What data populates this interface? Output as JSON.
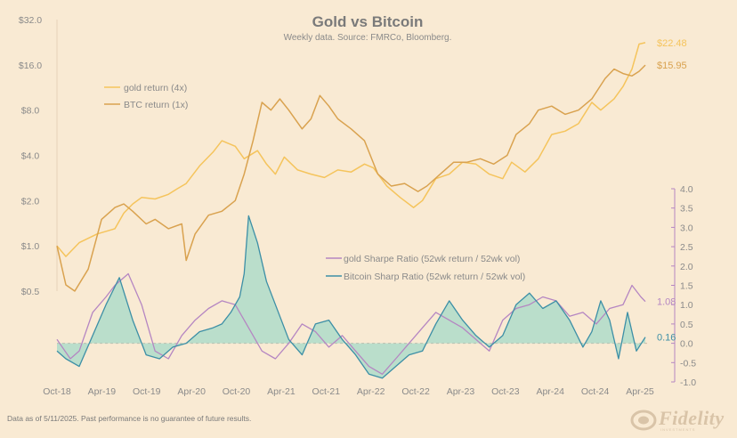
{
  "chart_data": {
    "type": "line",
    "title": "Gold vs Bitcoin",
    "subtitle": "Weekly data.  Source: FMRCo, Bloomberg.",
    "x_labels": [
      "Oct-18",
      "Apr-19",
      "Oct-19",
      "Apr-20",
      "Oct-20",
      "Apr-21",
      "Oct-21",
      "Apr-22",
      "Oct-22",
      "Apr-23",
      "Oct-23",
      "Apr-24",
      "Oct-24",
      "Apr-25"
    ],
    "x_range": [
      2018.75,
      2025.4
    ],
    "left_axis": {
      "scale": "log2",
      "ticks": [
        "$0.5",
        "$1.0",
        "$2.0",
        "$4.0",
        "$8.0",
        "$16.0",
        "$32.0"
      ],
      "tick_values": [
        0.5,
        1,
        2,
        4,
        8,
        16,
        32
      ],
      "ylim": [
        0.5,
        32
      ]
    },
    "right_axis": {
      "ticks": [
        "-1.0",
        "-0.5",
        "0.0",
        "0.5",
        "1.0",
        "1.5",
        "2.0",
        "2.5",
        "3.0",
        "3.5",
        "4.0"
      ],
      "ylim": [
        -1.0,
        4.0
      ]
    },
    "series": [
      {
        "name": "gold return (4x)",
        "axis": "left",
        "color": "#f5c45c",
        "end_label": "$22.48",
        "x": [
          2018.75,
          2018.85,
          2019.0,
          2019.2,
          2019.4,
          2019.5,
          2019.6,
          2019.7,
          2019.85,
          2020.0,
          2020.1,
          2020.2,
          2020.35,
          2020.5,
          2020.6,
          2020.75,
          2020.85,
          2021.0,
          2021.1,
          2021.2,
          2021.3,
          2021.45,
          2021.6,
          2021.75,
          2021.9,
          2022.05,
          2022.2,
          2022.3,
          2022.45,
          2022.6,
          2022.75,
          2022.85,
          2023.0,
          2023.15,
          2023.3,
          2023.45,
          2023.6,
          2023.75,
          2023.85,
          2024.0,
          2024.15,
          2024.3,
          2024.45,
          2024.6,
          2024.75,
          2024.85,
          2025.0,
          2025.1,
          2025.2,
          2025.28,
          2025.35
        ],
        "values": [
          1.0,
          0.85,
          1.05,
          1.2,
          1.3,
          1.65,
          1.9,
          2.1,
          2.05,
          2.2,
          2.4,
          2.6,
          3.4,
          4.2,
          5.0,
          4.6,
          3.8,
          4.3,
          3.5,
          3.0,
          3.9,
          3.2,
          3.0,
          2.85,
          3.2,
          3.1,
          3.5,
          3.3,
          2.5,
          2.1,
          1.8,
          2.0,
          2.8,
          3.0,
          3.6,
          3.5,
          3.0,
          2.8,
          3.6,
          3.1,
          3.8,
          5.5,
          5.8,
          6.5,
          9.0,
          8.0,
          9.5,
          11.5,
          15.0,
          22.0,
          22.48
        ]
      },
      {
        "name": "BTC return (1x)",
        "axis": "left",
        "color": "#d9a24f",
        "end_label": "$15.95",
        "x": [
          2018.75,
          2018.85,
          2018.95,
          2019.1,
          2019.25,
          2019.4,
          2019.5,
          2019.6,
          2019.75,
          2019.85,
          2020.0,
          2020.15,
          2020.2,
          2020.3,
          2020.45,
          2020.6,
          2020.75,
          2020.85,
          2020.95,
          2021.05,
          2021.15,
          2021.25,
          2021.35,
          2021.5,
          2021.6,
          2021.7,
          2021.8,
          2021.9,
          2022.05,
          2022.2,
          2022.35,
          2022.5,
          2022.65,
          2022.8,
          2022.9,
          2023.05,
          2023.2,
          2023.35,
          2023.5,
          2023.65,
          2023.8,
          2023.9,
          2024.05,
          2024.15,
          2024.3,
          2024.45,
          2024.6,
          2024.75,
          2024.9,
          2025.0,
          2025.1,
          2025.2,
          2025.28,
          2025.35
        ],
        "values": [
          1.0,
          0.55,
          0.5,
          0.7,
          1.5,
          1.8,
          1.9,
          1.7,
          1.4,
          1.5,
          1.3,
          1.4,
          0.8,
          1.2,
          1.6,
          1.7,
          2.0,
          3.0,
          5.0,
          9.0,
          8.0,
          9.5,
          8.0,
          6.0,
          7.0,
          10.0,
          8.5,
          7.0,
          6.0,
          5.0,
          3.0,
          2.5,
          2.6,
          2.3,
          2.5,
          3.0,
          3.6,
          3.6,
          3.8,
          3.5,
          4.0,
          5.5,
          6.5,
          8.0,
          8.5,
          7.5,
          8.0,
          9.5,
          13.0,
          15.0,
          14.0,
          13.5,
          14.5,
          15.95
        ]
      },
      {
        "name": "gold Sharpe Ratio (52wk return / 52wk vol)",
        "axis": "right",
        "color": "#b586c2",
        "end_label": "1.08",
        "x": [
          2018.75,
          2018.9,
          2019.0,
          2019.15,
          2019.3,
          2019.4,
          2019.55,
          2019.7,
          2019.85,
          2020.0,
          2020.15,
          2020.3,
          2020.45,
          2020.6,
          2020.75,
          2020.9,
          2021.05,
          2021.2,
          2021.35,
          2021.5,
          2021.65,
          2021.8,
          2021.95,
          2022.1,
          2022.25,
          2022.4,
          2022.55,
          2022.7,
          2022.85,
          2023.0,
          2023.15,
          2023.3,
          2023.45,
          2023.6,
          2023.75,
          2023.9,
          2024.05,
          2024.2,
          2024.35,
          2024.5,
          2024.65,
          2024.8,
          2024.95,
          2025.1,
          2025.2,
          2025.3,
          2025.35
        ],
        "values": [
          0.1,
          -0.4,
          -0.2,
          0.8,
          1.2,
          1.5,
          1.8,
          1.0,
          -0.2,
          -0.4,
          0.2,
          0.6,
          0.9,
          1.1,
          1.0,
          0.4,
          -0.2,
          -0.4,
          0.0,
          0.5,
          0.3,
          -0.1,
          0.2,
          -0.2,
          -0.6,
          -0.8,
          -0.4,
          0.0,
          0.4,
          0.8,
          0.6,
          0.4,
          0.1,
          -0.2,
          0.6,
          0.9,
          1.0,
          1.2,
          1.1,
          0.7,
          0.8,
          0.5,
          0.9,
          1.0,
          1.5,
          1.2,
          1.08
        ]
      },
      {
        "name": "Bitcoin Sharp Ratio (52wk return / 52wk vol)",
        "axis": "right",
        "color": "#3d8fa6",
        "fill_color": "#8fd6c6",
        "end_label": "0.16",
        "x": [
          2018.75,
          2018.85,
          2019.0,
          2019.15,
          2019.3,
          2019.45,
          2019.6,
          2019.75,
          2019.9,
          2020.05,
          2020.2,
          2020.35,
          2020.5,
          2020.6,
          2020.7,
          2020.8,
          2020.85,
          2020.9,
          2021.0,
          2021.1,
          2021.2,
          2021.35,
          2021.5,
          2021.65,
          2021.8,
          2021.95,
          2022.1,
          2022.25,
          2022.4,
          2022.55,
          2022.7,
          2022.85,
          2023.0,
          2023.15,
          2023.3,
          2023.45,
          2023.6,
          2023.75,
          2023.9,
          2024.05,
          2024.2,
          2024.35,
          2024.5,
          2024.65,
          2024.75,
          2024.85,
          2024.95,
          2025.05,
          2025.15,
          2025.25,
          2025.35
        ],
        "values": [
          -0.2,
          -0.4,
          -0.6,
          0.2,
          1.0,
          1.7,
          0.6,
          -0.3,
          -0.4,
          -0.1,
          0.0,
          0.3,
          0.4,
          0.5,
          0.8,
          1.2,
          1.8,
          3.3,
          2.6,
          1.6,
          1.0,
          0.1,
          -0.3,
          0.5,
          0.6,
          0.1,
          -0.3,
          -0.8,
          -0.9,
          -0.6,
          -0.3,
          -0.2,
          0.5,
          1.1,
          0.6,
          0.2,
          -0.1,
          0.2,
          1.0,
          1.3,
          0.9,
          1.1,
          0.6,
          -0.1,
          0.3,
          1.1,
          0.6,
          -0.4,
          0.8,
          -0.2,
          0.16
        ]
      }
    ]
  },
  "footer": "Data as of 5/11/2025. Past performance is no guarantee of future results.",
  "brand": {
    "logo_text": "Fidelity",
    "logo_sub": "INVESTMENTS"
  }
}
